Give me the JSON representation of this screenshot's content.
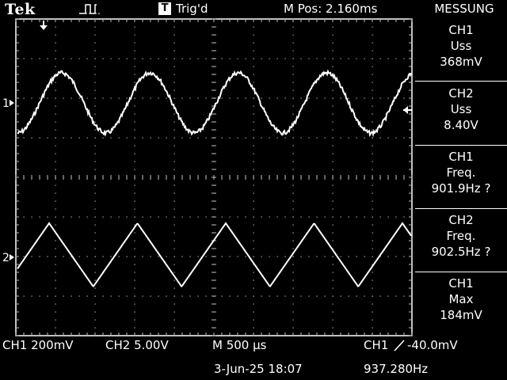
{
  "header": {
    "brand": "Tek",
    "acquisition_icon": "run-pulse-icon",
    "trigger_badge": "T",
    "trigger_state": "Trig'd",
    "horizontal_position": "M Pos: 2.160ms",
    "menu_title": "MESSUNG"
  },
  "markers": {
    "ch1_label": "1",
    "ch2_label": "2",
    "trigger_position_icon": "arrow-down-icon",
    "trigger_level_icon": "arrow-left-icon"
  },
  "measurements": [
    {
      "source": "CH1",
      "type": "Uss",
      "value": "368mV"
    },
    {
      "source": "CH2",
      "type": "Uss",
      "value": "8.40V"
    },
    {
      "source": "CH1",
      "type": "Freq.",
      "value": "901.9Hz ?"
    },
    {
      "source": "CH2",
      "type": "Freq.",
      "value": "902.5Hz ?"
    },
    {
      "source": "CH1",
      "type": "Max",
      "value": "184mV"
    }
  ],
  "status": {
    "ch1_scale": "CH1  200mV",
    "ch2_scale": "CH2  5.00V",
    "time_scale": "M 500 µs",
    "trigger_source": "CH1",
    "trigger_slope_icon": "rising-edge-icon",
    "trigger_level": "-40.0mV",
    "date_time": "3-Jun-25 18:07",
    "trigger_frequency": "937.280Hz"
  },
  "waveforms": {
    "ch1_shape": "sine",
    "ch2_shape": "triangle",
    "color": "#ffffff"
  }
}
